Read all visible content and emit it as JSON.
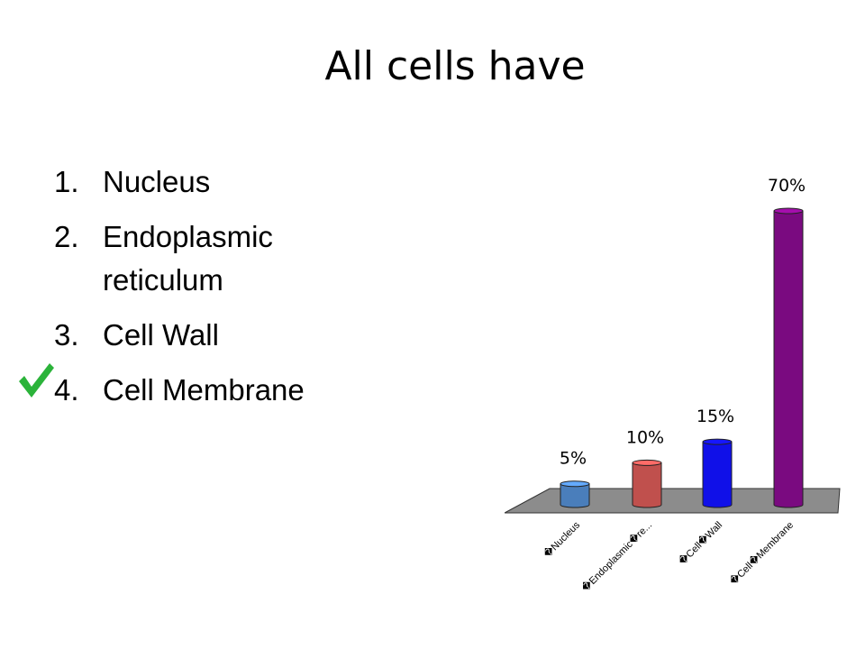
{
  "slide": {
    "title": "All cells have",
    "options": [
      {
        "number": "1.",
        "text": "Nucleus",
        "correct": false
      },
      {
        "number": "2.",
        "text": "Endoplasmic reticulum",
        "correct": false
      },
      {
        "number": "3.",
        "text": "Cell Wall",
        "correct": false
      },
      {
        "number": "4.",
        "text": "Cell Membrane",
        "correct": true
      }
    ],
    "check_icon": "checkmark-icon",
    "check_color": "#2bb33a"
  },
  "chart_data": {
    "type": "bar",
    "style": "3d-cylinder",
    "categories": [
      "Nucleus",
      "Endoplasmic re...",
      "Cell Wall",
      "Cell Membrane"
    ],
    "tick_labels": [
      "�Nucleus",
      "�Endoplasmic�re...",
      "�Cell�Wall",
      "�Cell�Membrane"
    ],
    "values": [
      5,
      10,
      15,
      70
    ],
    "data_labels": [
      "5%",
      "10%",
      "15%",
      "70%"
    ],
    "colors": [
      "#4a7ebb",
      "#c0504d",
      "#1010e8",
      "#7a0a80"
    ],
    "floor_color": "#8c8c8c",
    "ylim": [
      0,
      70
    ],
    "grid": false,
    "legend": "none",
    "title": "",
    "xlabel": "",
    "ylabel": ""
  }
}
